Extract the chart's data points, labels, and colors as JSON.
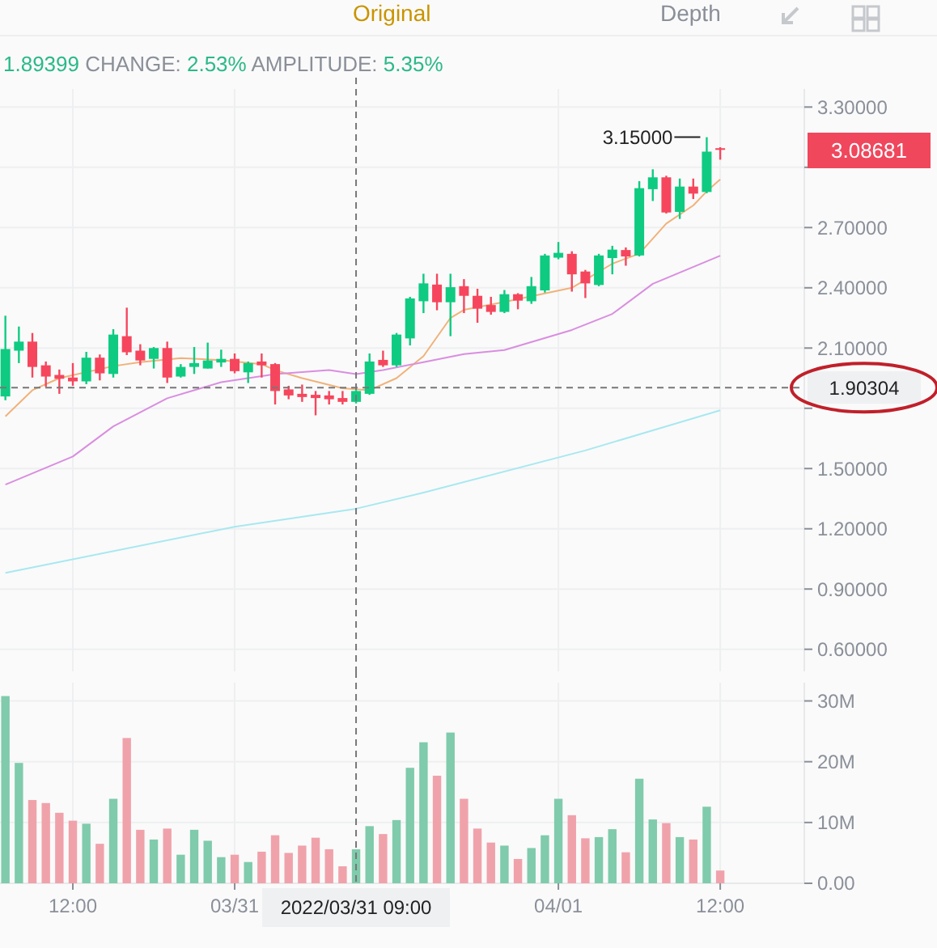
{
  "chart_data": [
    {
      "type": "candlestick",
      "subtitle": "1.89399 CHANGE: 2.53% AMPLITUDE: 5.35%",
      "annotations": [
        "Original",
        "Depth",
        {
          "text": "3.15000",
          "x": "2022-04-01T11:00",
          "y": 3.15
        },
        "3.08681"
      ],
      "x": [
        "2022-03-30T07:00",
        "2022-03-30T08:00",
        "2022-03-30T09:00",
        "2022-03-30T10:00",
        "2022-03-30T11:00",
        "2022-03-30T12:00",
        "2022-03-30T13:00",
        "2022-03-30T14:00",
        "2022-03-30T15:00",
        "2022-03-30T16:00",
        "2022-03-30T17:00",
        "2022-03-30T18:00",
        "2022-03-30T19:00",
        "2022-03-30T20:00",
        "2022-03-30T21:00",
        "2022-03-30T22:00",
        "2022-03-30T23:00",
        "2022-03-31T00:00",
        "2022-03-31T01:00",
        "2022-03-31T02:00",
        "2022-03-31T03:00",
        "2022-03-31T04:00",
        "2022-03-31T05:00",
        "2022-03-31T06:00",
        "2022-03-31T07:00",
        "2022-03-31T08:00",
        "2022-03-31T09:00",
        "2022-03-31T10:00",
        "2022-03-31T11:00",
        "2022-03-31T12:00",
        "2022-03-31T13:00",
        "2022-03-31T14:00",
        "2022-03-31T15:00",
        "2022-03-31T16:00",
        "2022-03-31T17:00",
        "2022-03-31T18:00",
        "2022-03-31T19:00",
        "2022-03-31T20:00",
        "2022-03-31T21:00",
        "2022-03-31T22:00",
        "2022-03-31T23:00",
        "2022-04-01T00:00",
        "2022-04-01T01:00",
        "2022-04-01T02:00",
        "2022-04-01T03:00",
        "2022-04-01T04:00",
        "2022-04-01T05:00",
        "2022-04-01T06:00",
        "2022-04-01T07:00",
        "2022-04-01T08:00",
        "2022-04-01T09:00",
        "2022-04-01T10:00",
        "2022-04-01T11:00",
        "2022-04-01T12:00"
      ],
      "ohlc": [
        [
          1.859,
          2.261,
          1.84,
          2.095
        ],
        [
          2.087,
          2.207,
          2.025,
          2.132
        ],
        [
          2.132,
          2.175,
          1.953,
          2.006
        ],
        [
          2.014,
          2.033,
          1.907,
          1.958
        ],
        [
          1.966,
          1.993,
          1.872,
          1.947
        ],
        [
          1.953,
          2.025,
          1.912,
          1.934
        ],
        [
          1.934,
          2.081,
          1.92,
          2.052
        ],
        [
          2.052,
          2.068,
          1.939,
          1.974
        ],
        [
          1.971,
          2.194,
          1.953,
          2.167
        ],
        [
          2.159,
          2.301,
          2.065,
          2.079
        ],
        [
          2.087,
          2.119,
          2.014,
          2.038
        ],
        [
          2.046,
          2.105,
          1.998,
          2.1
        ],
        [
          2.1,
          2.132,
          1.926,
          1.953
        ],
        [
          1.958,
          2.02,
          1.953,
          2.006
        ],
        [
          2.006,
          2.105,
          1.971,
          2.025
        ],
        [
          1.998,
          2.127,
          1.998,
          2.038
        ],
        [
          2.028,
          2.092,
          2.006,
          2.046
        ],
        [
          2.046,
          2.073,
          1.974,
          1.985
        ],
        [
          1.979,
          2.033,
          1.926,
          2.025
        ],
        [
          2.033,
          2.073,
          1.953,
          2.014
        ],
        [
          2.02,
          2.025,
          1.819,
          1.886
        ],
        [
          1.894,
          1.912,
          1.845,
          1.864
        ],
        [
          1.872,
          1.918,
          1.832,
          1.856
        ],
        [
          1.867,
          1.886,
          1.765,
          1.851
        ],
        [
          1.864,
          1.886,
          1.819,
          1.845
        ],
        [
          1.851,
          1.886,
          1.819,
          1.832
        ],
        [
          1.832,
          1.891,
          1.824,
          1.886
        ],
        [
          1.872,
          2.073,
          1.867,
          2.033
        ],
        [
          2.041,
          2.087,
          2.006,
          2.014
        ],
        [
          2.014,
          2.175,
          2.006,
          2.167
        ],
        [
          2.148,
          2.355,
          2.113,
          2.347
        ],
        [
          2.333,
          2.47,
          2.274,
          2.422
        ],
        [
          2.416,
          2.47,
          2.288,
          2.328
        ],
        [
          2.328,
          2.47,
          2.159,
          2.403
        ],
        [
          2.408,
          2.443,
          2.274,
          2.36
        ],
        [
          2.36,
          2.395,
          2.226,
          2.296
        ],
        [
          2.314,
          2.355,
          2.266,
          2.28
        ],
        [
          2.28,
          2.389,
          2.274,
          2.368
        ],
        [
          2.368,
          2.373,
          2.293,
          2.336
        ],
        [
          2.333,
          2.454,
          2.32,
          2.408
        ],
        [
          2.387,
          2.569,
          2.376,
          2.561
        ],
        [
          2.55,
          2.628,
          2.542,
          2.574
        ],
        [
          2.569,
          2.582,
          2.381,
          2.467
        ],
        [
          2.481,
          2.489,
          2.349,
          2.422
        ],
        [
          2.414,
          2.569,
          2.408,
          2.561
        ],
        [
          2.548,
          2.609,
          2.467,
          2.59
        ],
        [
          2.588,
          2.601,
          2.51,
          2.556
        ],
        [
          2.561,
          2.931,
          2.556,
          2.896
        ],
        [
          2.891,
          2.99,
          2.832,
          2.95
        ],
        [
          2.95,
          2.958,
          2.77,
          2.775
        ],
        [
          2.778,
          2.944,
          2.743,
          2.904
        ],
        [
          2.904,
          2.944,
          2.842,
          2.869
        ],
        [
          2.877,
          3.15,
          2.871,
          3.078
        ],
        [
          3.095,
          3.1,
          3.038,
          3.08681
        ]
      ],
      "colors": [
        "#0ecb81",
        "#0ecb81",
        "#f6465d",
        "#f6465d",
        "#f6465d",
        "#f6465d",
        "#0ecb81",
        "#f6465d",
        "#0ecb81",
        "#f6465d",
        "#f6465d",
        "#0ecb81",
        "#f6465d",
        "#0ecb81",
        "#0ecb81",
        "#0ecb81",
        "#0ecb81",
        "#f6465d",
        "#0ecb81",
        "#f6465d",
        "#f6465d",
        "#f6465d",
        "#f6465d",
        "#f6465d",
        "#f6465d",
        "#f6465d",
        "#0ecb81",
        "#0ecb81",
        "#f6465d",
        "#0ecb81",
        "#0ecb81",
        "#0ecb81",
        "#f6465d",
        "#0ecb81",
        "#f6465d",
        "#f6465d",
        "#f6465d",
        "#0ecb81",
        "#f6465d",
        "#0ecb81",
        "#0ecb81",
        "#0ecb81",
        "#f6465d",
        "#f6465d",
        "#0ecb81",
        "#0ecb81",
        "#f6465d",
        "#0ecb81",
        "#0ecb81",
        "#f6465d",
        "#0ecb81",
        "#f6465d",
        "#0ecb81",
        "#f6465d"
      ],
      "series": [
        {
          "type": "line",
          "color": "#f0b27a",
          "x": [
            "2022-03-30T07:00",
            "2022-03-30T09:00",
            "2022-03-30T11:00",
            "2022-03-30T15:00",
            "2022-03-30T17:00",
            "2022-03-30T20:00",
            "2022-03-30T23:00",
            "2022-03-31T02:00",
            "2022-03-31T03:00",
            "2022-03-31T05:00",
            "2022-03-31T08:00",
            "2022-03-31T10:00",
            "2022-03-31T12:00",
            "2022-03-31T14:00",
            "2022-03-31T16:00",
            "2022-03-31T17:00",
            "2022-03-31T20:00",
            "2022-04-01T01:00",
            "2022-04-01T04:00",
            "2022-04-01T06:00",
            "2022-04-01T08:00",
            "2022-04-01T10:00",
            "2022-04-01T11:00",
            "2022-04-01T12:00"
          ],
          "values": [
            1.76,
            1.89,
            1.95,
            2.01,
            2.03,
            2.05,
            2.04,
            2.02,
            1.99,
            1.95,
            1.9,
            1.89,
            1.95,
            2.06,
            2.25,
            2.29,
            2.33,
            2.4,
            2.52,
            2.57,
            2.72,
            2.81,
            2.88,
            2.94
          ]
        },
        {
          "type": "line",
          "color": "#d98ee0",
          "x": [
            "2022-03-30T07:00",
            "2022-03-30T12:00",
            "2022-03-30T15:00",
            "2022-03-30T19:00",
            "2022-03-30T23:00",
            "2022-03-31T03:00",
            "2022-03-31T07:00",
            "2022-03-31T09:00",
            "2022-03-31T11:00",
            "2022-03-31T14:00",
            "2022-03-31T17:00",
            "2022-03-31T20:00",
            "2022-04-01T01:00",
            "2022-04-01T04:00",
            "2022-04-01T07:00",
            "2022-04-01T12:00"
          ],
          "values": [
            1.42,
            1.56,
            1.71,
            1.85,
            1.93,
            1.97,
            1.99,
            1.97,
            1.99,
            2.03,
            2.07,
            2.09,
            2.19,
            2.27,
            2.42,
            2.56
          ]
        },
        {
          "type": "line",
          "color": "#a8e8f0",
          "x": [
            "2022-03-30T07:00",
            "2022-03-31T00:00",
            "2022-03-31T09:00",
            "2022-03-31T14:00",
            "2022-04-01T02:00",
            "2022-04-01T12:00"
          ],
          "values": [
            0.98,
            1.21,
            1.3,
            1.38,
            1.59,
            1.79
          ]
        }
      ],
      "xlim": [
        "2022-03-30T06:36",
        "2022-04-01T18:14"
      ],
      "xticks": [
        {
          "value": "2022-03-30T12:00",
          "label": null
        },
        {
          "value": "2022-03-31T00:00",
          "label": null
        },
        {
          "value": "2022-04-01T00:00",
          "label": null
        },
        {
          "value": "2022-04-01T12:00",
          "label": null
        }
      ],
      "ylim": [
        0.49,
        3.39
      ],
      "yticks": [
        {
          "value": 0.6,
          "label": "0.60000"
        },
        {
          "value": 0.9,
          "label": "0.90000"
        },
        {
          "value": 1.2,
          "label": "1.20000"
        },
        {
          "value": 1.5,
          "label": "1.50000"
        },
        {
          "value": 1.8,
          "label": null
        },
        {
          "value": 2.1,
          "label": "2.10000"
        },
        {
          "value": 2.4,
          "label": "2.40000"
        },
        {
          "value": 2.7,
          "label": "2.70000"
        },
        {
          "value": 3.0,
          "label": null
        },
        {
          "value": 3.3,
          "label": "3.30000"
        }
      ],
      "ref_lines": [
        {
          "axis": "x",
          "value": "2022-03-31T09:00",
          "label": null
        },
        {
          "axis": "y",
          "value": 1.90304,
          "label": "1.90304"
        }
      ],
      "grid": true,
      "tick_labels": "y"
    },
    {
      "type": "bar",
      "x": [
        "2022-03-30T07:00",
        "2022-03-30T08:00",
        "2022-03-30T09:00",
        "2022-03-30T10:00",
        "2022-03-30T11:00",
        "2022-03-30T12:00",
        "2022-03-30T13:00",
        "2022-03-30T14:00",
        "2022-03-30T15:00",
        "2022-03-30T16:00",
        "2022-03-30T17:00",
        "2022-03-30T18:00",
        "2022-03-30T19:00",
        "2022-03-30T20:00",
        "2022-03-30T21:00",
        "2022-03-30T22:00",
        "2022-03-30T23:00",
        "2022-03-31T00:00",
        "2022-03-31T01:00",
        "2022-03-31T02:00",
        "2022-03-31T03:00",
        "2022-03-31T04:00",
        "2022-03-31T05:00",
        "2022-03-31T06:00",
        "2022-03-31T07:00",
        "2022-03-31T08:00",
        "2022-03-31T09:00",
        "2022-03-31T10:00",
        "2022-03-31T11:00",
        "2022-03-31T12:00",
        "2022-03-31T13:00",
        "2022-03-31T14:00",
        "2022-03-31T15:00",
        "2022-03-31T16:00",
        "2022-03-31T17:00",
        "2022-03-31T18:00",
        "2022-03-31T19:00",
        "2022-03-31T20:00",
        "2022-03-31T21:00",
        "2022-03-31T22:00",
        "2022-03-31T23:00",
        "2022-04-01T00:00",
        "2022-04-01T01:00",
        "2022-04-01T02:00",
        "2022-04-01T03:00",
        "2022-04-01T04:00",
        "2022-04-01T05:00",
        "2022-04-01T06:00",
        "2022-04-01T07:00",
        "2022-04-01T08:00",
        "2022-04-01T09:00",
        "2022-04-01T10:00",
        "2022-04-01T11:00",
        "2022-04-01T12:00"
      ],
      "values": [
        30.8,
        19.8,
        13.7,
        13.2,
        11.6,
        10.3,
        9.8,
        6.5,
        13.9,
        23.9,
        8.8,
        7.2,
        9.0,
        4.7,
        8.8,
        7.0,
        4.3,
        4.7,
        3.5,
        5.2,
        7.9,
        5.0,
        6.2,
        7.5,
        5.6,
        2.8,
        5.6,
        9.4,
        8.1,
        10.4,
        19.0,
        23.2,
        17.7,
        24.8,
        13.9,
        9.0,
        6.7,
        6.2,
        4.0,
        5.8,
        7.9,
        13.9,
        11.2,
        7.4,
        7.6,
        8.9,
        5.1,
        17.2,
        10.5,
        9.9,
        7.6,
        7.2,
        12.6,
        2.1
      ],
      "colors": [
        "#7fcbac",
        "#7fcbac",
        "#f0a2ab",
        "#f0a2ab",
        "#f0a2ab",
        "#f0a2ab",
        "#7fcbac",
        "#f0a2ab",
        "#7fcbac",
        "#f0a2ab",
        "#f0a2ab",
        "#7fcbac",
        "#f0a2ab",
        "#7fcbac",
        "#7fcbac",
        "#7fcbac",
        "#7fcbac",
        "#f0a2ab",
        "#7fcbac",
        "#f0a2ab",
        "#f0a2ab",
        "#f0a2ab",
        "#f0a2ab",
        "#f0a2ab",
        "#f0a2ab",
        "#f0a2ab",
        "#7fcbac",
        "#7fcbac",
        "#f0a2ab",
        "#7fcbac",
        "#7fcbac",
        "#7fcbac",
        "#f0a2ab",
        "#7fcbac",
        "#f0a2ab",
        "#f0a2ab",
        "#f0a2ab",
        "#7fcbac",
        "#f0a2ab",
        "#7fcbac",
        "#7fcbac",
        "#7fcbac",
        "#f0a2ab",
        "#f0a2ab",
        "#7fcbac",
        "#7fcbac",
        "#f0a2ab",
        "#7fcbac",
        "#7fcbac",
        "#f0a2ab",
        "#7fcbac",
        "#f0a2ab",
        "#7fcbac",
        "#f0a2ab"
      ],
      "xlim": [
        "2022-03-30T06:36",
        "2022-04-01T18:14"
      ],
      "xticks": [
        {
          "value": "2022-03-30T12:00",
          "label": "12:00"
        },
        {
          "value": "2022-03-31T00:00",
          "label": "03/31"
        },
        {
          "value": "2022-04-01T00:00",
          "label": "04/01"
        },
        {
          "value": "2022-04-01T12:00",
          "label": "12:00"
        }
      ],
      "ylim": [
        0,
        33
      ],
      "yticks": [
        {
          "value": 0,
          "label": "0.00"
        },
        {
          "value": 10,
          "label": "10M"
        },
        {
          "value": 20,
          "label": "20M"
        },
        {
          "value": 30,
          "label": "30M"
        }
      ],
      "ref_lines": [
        {
          "axis": "x",
          "value": "2022-03-31T09:00",
          "label": "2022/03/31 09:00"
        }
      ],
      "grid": true
    }
  ]
}
